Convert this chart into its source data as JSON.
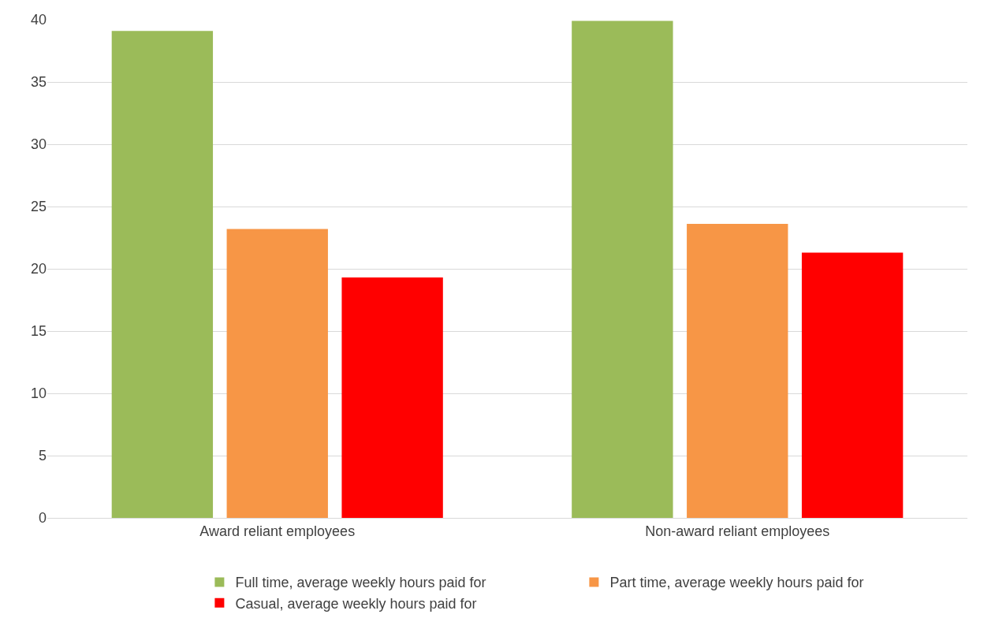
{
  "chart_data": {
    "type": "bar",
    "categories": [
      "Award reliant employees",
      "Non-award reliant employees"
    ],
    "series": [
      {
        "name": "Full time, average weekly hours paid for",
        "color": "#9bbb59",
        "values": [
          39.1,
          39.9
        ]
      },
      {
        "name": "Part time, average weekly hours paid for",
        "color": "#f79646",
        "values": [
          23.2,
          23.6
        ]
      },
      {
        "name": "Casual, average weekly hours paid for",
        "color": "#ff0000",
        "values": [
          19.3,
          21.3
        ]
      }
    ],
    "ylim": [
      0,
      40
    ],
    "yticks": [
      0,
      5,
      10,
      15,
      20,
      25,
      30,
      35,
      40
    ],
    "grid": "y",
    "legend": "bottom"
  }
}
